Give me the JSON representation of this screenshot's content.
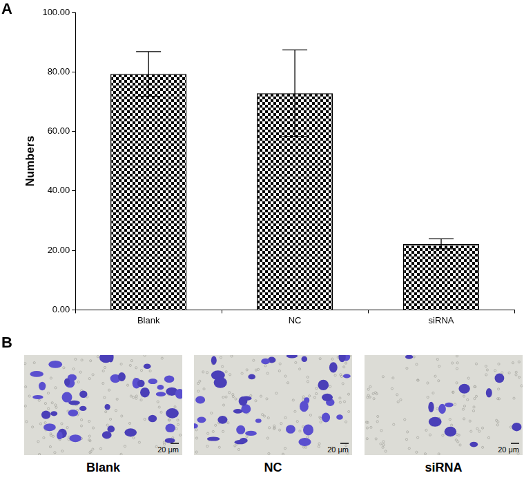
{
  "chart_data": {
    "type": "bar",
    "panel": "A",
    "y_label": "Numbers",
    "categories": [
      "Blank",
      "NC",
      "siRNA"
    ],
    "values": [
      79.3,
      72.8,
      22.2
    ],
    "errors": [
      7.5,
      14.6,
      1.7
    ],
    "color": "#000000",
    "ylim": [
      0,
      100
    ],
    "yticks": [
      {
        "value": 0,
        "label": "0.00"
      },
      {
        "value": 20,
        "label": "20.00"
      },
      {
        "value": 40,
        "label": "40.00"
      },
      {
        "value": 60,
        "label": "60.00"
      },
      {
        "value": 80,
        "label": "80.00"
      },
      {
        "value": 100,
        "label": "100.00"
      }
    ],
    "grid": false
  },
  "images_panel": {
    "panel": "B",
    "images": [
      {
        "label": "Blank",
        "scale_bar": "20 μm"
      },
      {
        "label": "NC",
        "scale_bar": "20 μm"
      },
      {
        "label": "siRNA",
        "scale_bar": "20 μm"
      }
    ]
  }
}
